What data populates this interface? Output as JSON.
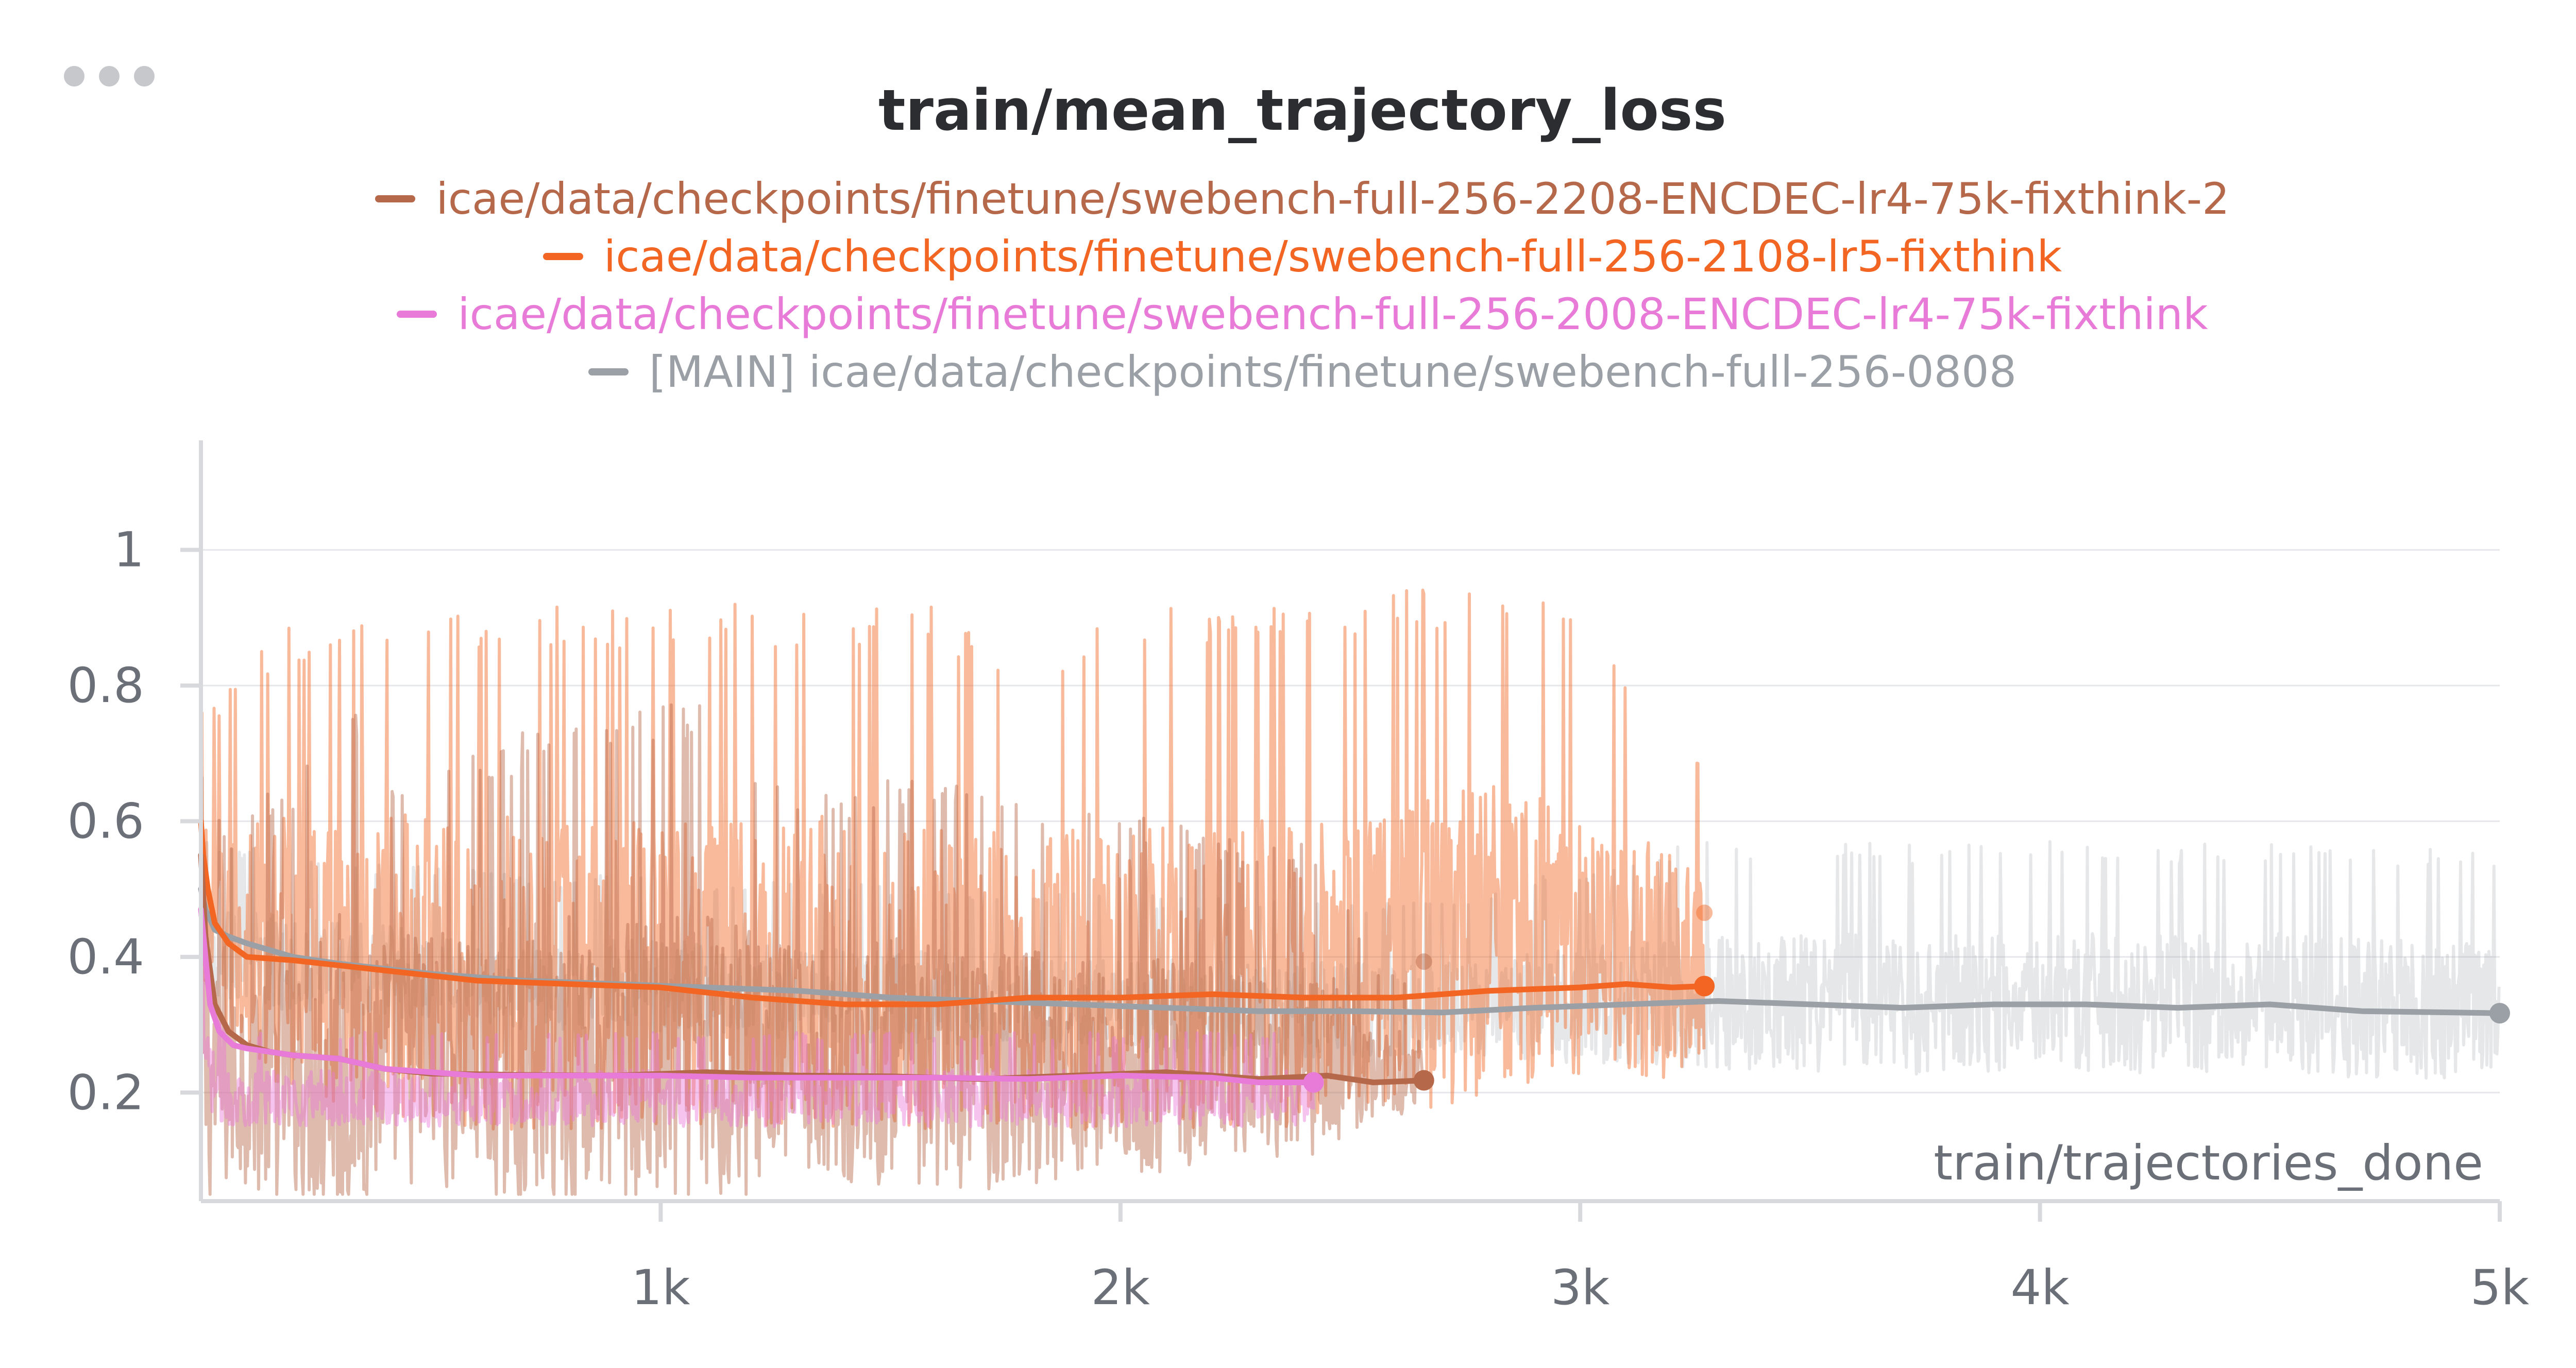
{
  "chart_data": {
    "type": "line",
    "title": "train/mean_trajectory_loss",
    "xlabel": "train/trajectories_done",
    "ylabel": "",
    "xlim": [
      0,
      5000
    ],
    "ylim": [
      0.04,
      1.15
    ],
    "x_ticks": [
      1000,
      2000,
      3000,
      4000,
      5000
    ],
    "x_tick_labels": [
      "1k",
      "2k",
      "3k",
      "4k",
      "5k"
    ],
    "y_ticks": [
      0.2,
      0.4,
      0.6,
      0.8,
      1
    ],
    "y_tick_labels": [
      "0.2",
      "0.4",
      "0.6",
      "0.8",
      "1"
    ],
    "grid": true,
    "legend_position": "top-center",
    "series": [
      {
        "name": "icae/data/checkpoints/finetune/swebench-full-256-2208-ENCDEC-lr4-75k-fixthink-2",
        "color": "#b5684a",
        "x": [
          0,
          10,
          30,
          60,
          100,
          150,
          200,
          300,
          400,
          500,
          700,
          900,
          1100,
          1300,
          1500,
          1700,
          1900,
          2100,
          2300,
          2450,
          2550,
          2660
        ],
        "smoothed": [
          0.55,
          0.43,
          0.33,
          0.29,
          0.27,
          0.26,
          0.255,
          0.25,
          0.235,
          0.228,
          0.226,
          0.225,
          0.23,
          0.225,
          0.224,
          0.22,
          0.225,
          0.23,
          0.22,
          0.225,
          0.215,
          0.218
        ],
        "raw_center": [
          0.25,
          0.2,
          0.2,
          0.21,
          0.22,
          0.22,
          0.225,
          0.235,
          0.24,
          0.24,
          0.24,
          0.235,
          0.235,
          0.24,
          0.235,
          0.235,
          0.23,
          0.23,
          0.23,
          0.24,
          0.23,
          0.225
        ],
        "raw_spread": [
          0.4,
          0.4,
          0.4,
          0.35,
          0.35,
          0.4,
          0.4,
          0.55,
          0.4,
          0.4,
          0.45,
          0.5,
          0.5,
          0.35,
          0.4,
          0.4,
          0.35,
          0.35,
          0.3,
          0.3,
          0.15,
          0.12
        ],
        "raw_end": 0.393
      },
      {
        "name": "icae/data/checkpoints/finetune/swebench-full-256-2108-lr5-fixthink",
        "color": "#f26522",
        "x": [
          0,
          5,
          15,
          30,
          60,
          100,
          200,
          400,
          600,
          800,
          1000,
          1200,
          1400,
          1600,
          1800,
          2000,
          2200,
          2400,
          2600,
          2800,
          3000,
          3100,
          3200,
          3270
        ],
        "smoothed": [
          0.6,
          0.55,
          0.5,
          0.45,
          0.42,
          0.4,
          0.395,
          0.38,
          0.365,
          0.36,
          0.355,
          0.34,
          0.33,
          0.33,
          0.34,
          0.34,
          0.345,
          0.34,
          0.34,
          0.35,
          0.355,
          0.36,
          0.355,
          0.357
        ],
        "raw_center": [
          0.45,
          0.45,
          0.45,
          0.44,
          0.42,
          0.41,
          0.4,
          0.38,
          0.37,
          0.37,
          0.37,
          0.37,
          0.37,
          0.37,
          0.36,
          0.36,
          0.37,
          0.37,
          0.39,
          0.42,
          0.42,
          0.4,
          0.38,
          0.38
        ],
        "raw_spread": [
          0.3,
          0.3,
          0.3,
          0.3,
          0.35,
          0.4,
          0.45,
          0.5,
          0.5,
          0.5,
          0.5,
          0.5,
          0.5,
          0.5,
          0.45,
          0.5,
          0.5,
          0.5,
          0.5,
          0.5,
          0.45,
          0.4,
          0.35,
          0.3
        ],
        "raw_end": 0.465
      },
      {
        "name": "icae/data/checkpoints/finetune/swebench-full-256-2008-ENCDEC-lr4-75k-fixthink",
        "color": "#e87bd8",
        "x": [
          0,
          10,
          20,
          40,
          70,
          100,
          150,
          200,
          300,
          400,
          600,
          800,
          1000,
          1200,
          1400,
          1600,
          1800,
          2000,
          2200,
          2300,
          2420
        ],
        "smoothed": [
          0.47,
          0.4,
          0.33,
          0.29,
          0.27,
          0.265,
          0.26,
          0.255,
          0.25,
          0.235,
          0.225,
          0.225,
          0.225,
          0.222,
          0.222,
          0.222,
          0.22,
          0.225,
          0.222,
          0.215,
          0.215
        ],
        "raw_center": [
          0.3,
          0.25,
          0.22,
          0.2,
          0.19,
          0.19,
          0.19,
          0.19,
          0.19,
          0.19,
          0.19,
          0.19,
          0.19,
          0.19,
          0.19,
          0.19,
          0.19,
          0.19,
          0.19,
          0.19,
          0.19
        ],
        "raw_spread": [
          0.12,
          0.12,
          0.1,
          0.1,
          0.09,
          0.09,
          0.09,
          0.09,
          0.09,
          0.09,
          0.09,
          0.09,
          0.09,
          0.09,
          0.09,
          0.09,
          0.09,
          0.09,
          0.09,
          0.09,
          0.09
        ],
        "raw_end": 0.215
      },
      {
        "name": "[MAIN] icae/data/checkpoints/finetune/swebench-full-256-0808",
        "color": "#9aa0a6",
        "x": [
          0,
          10,
          30,
          60,
          100,
          150,
          200,
          300,
          500,
          700,
          900,
          1100,
          1300,
          1500,
          1700,
          1900,
          2100,
          2300,
          2500,
          2700,
          2900,
          3100,
          3300,
          3500,
          3700,
          3900,
          4100,
          4300,
          4500,
          4700,
          4900,
          5000
        ],
        "smoothed": [
          0.5,
          0.47,
          0.44,
          0.43,
          0.42,
          0.41,
          0.4,
          0.39,
          0.375,
          0.365,
          0.36,
          0.355,
          0.35,
          0.34,
          0.335,
          0.33,
          0.325,
          0.32,
          0.32,
          0.318,
          0.325,
          0.33,
          0.335,
          0.33,
          0.325,
          0.33,
          0.33,
          0.325,
          0.33,
          0.32,
          0.318,
          0.317
        ],
        "raw_center": [
          0.42,
          0.42,
          0.41,
          0.4,
          0.4,
          0.39,
          0.39,
          0.38,
          0.37,
          0.36,
          0.355,
          0.35,
          0.345,
          0.34,
          0.335,
          0.33,
          0.325,
          0.32,
          0.32,
          0.32,
          0.325,
          0.33,
          0.33,
          0.33,
          0.325,
          0.33,
          0.33,
          0.325,
          0.33,
          0.32,
          0.32,
          0.32
        ],
        "raw_spread": [
          0.15,
          0.15,
          0.15,
          0.15,
          0.15,
          0.15,
          0.15,
          0.15,
          0.15,
          0.15,
          0.15,
          0.15,
          0.15,
          0.15,
          0.15,
          0.15,
          0.15,
          0.15,
          0.15,
          0.15,
          0.18,
          0.2,
          0.22,
          0.22,
          0.22,
          0.22,
          0.22,
          0.22,
          0.22,
          0.22,
          0.22,
          0.2
        ],
        "raw_end": 0.318
      }
    ]
  }
}
